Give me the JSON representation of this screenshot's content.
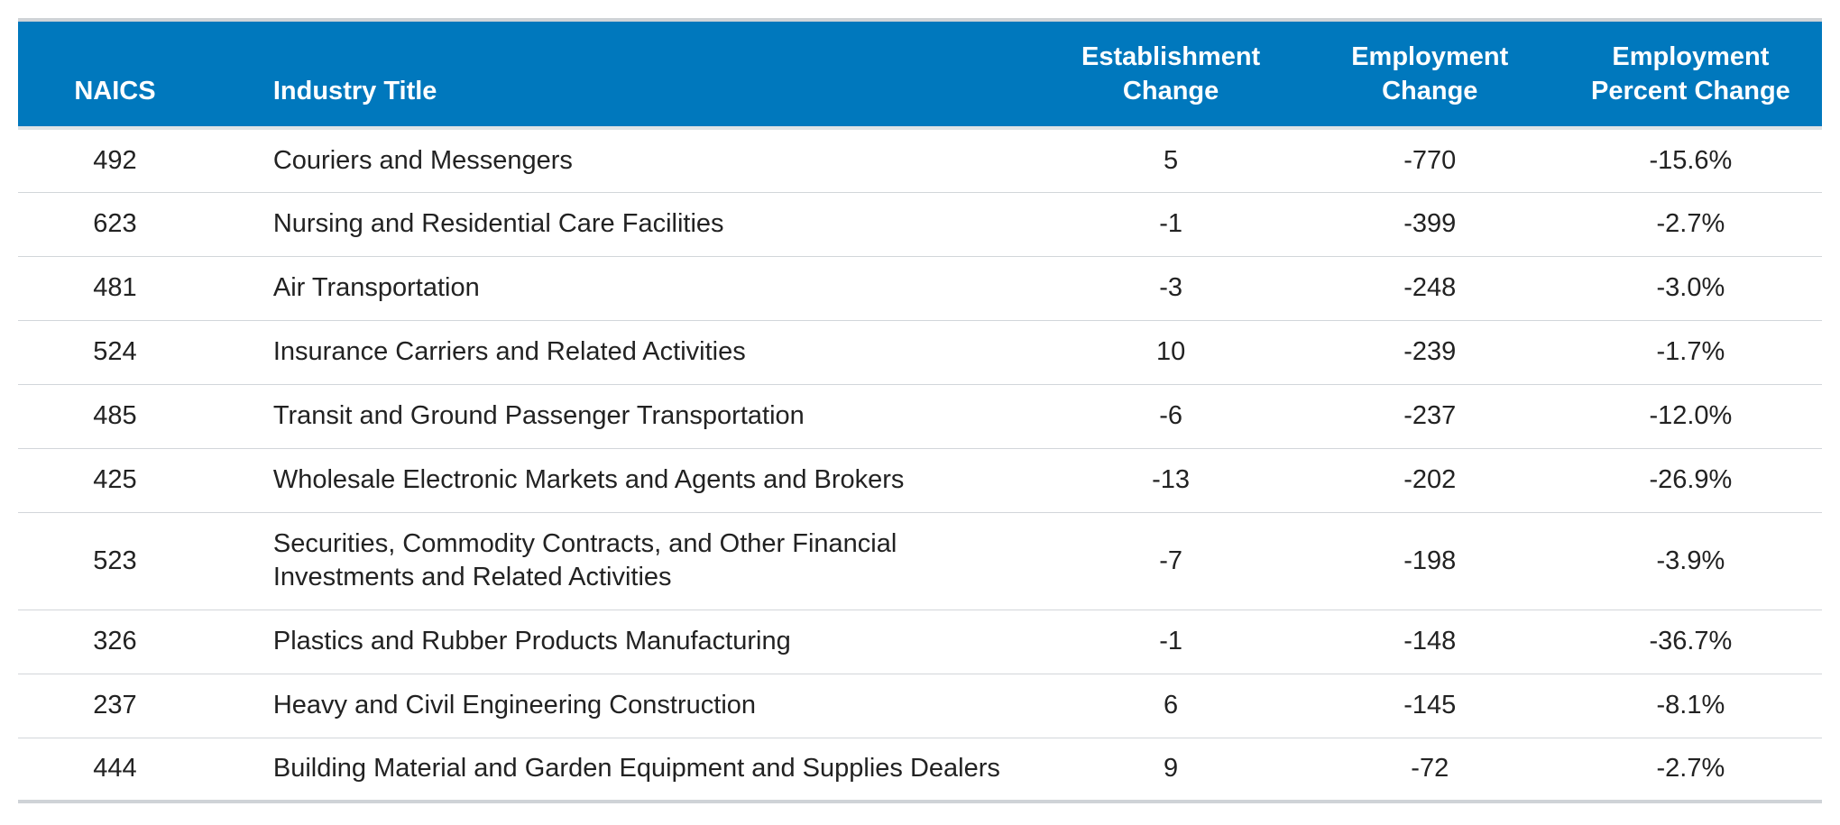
{
  "table": {
    "headers": {
      "naics": "NAICS",
      "title": "Industry Title",
      "establishment_change": [
        "Establishment",
        "Change"
      ],
      "employment_change": [
        "Employment",
        "Change"
      ],
      "employment_percent_change": [
        "Employment",
        "Percent Change"
      ]
    },
    "rows": [
      {
        "naics": "492",
        "title": "Couriers and Messengers",
        "establishment_change": "5",
        "employment_change": "-770",
        "employment_percent_change": "-15.6%"
      },
      {
        "naics": "623",
        "title": "Nursing and Residential Care Facilities",
        "establishment_change": "-1",
        "employment_change": "-399",
        "employment_percent_change": "-2.7%"
      },
      {
        "naics": "481",
        "title": "Air Transportation",
        "establishment_change": "-3",
        "employment_change": "-248",
        "employment_percent_change": "-3.0%"
      },
      {
        "naics": "524",
        "title": "Insurance Carriers and Related Activities",
        "establishment_change": "10",
        "employment_change": "-239",
        "employment_percent_change": "-1.7%"
      },
      {
        "naics": "485",
        "title": "Transit and Ground Passenger Transportation",
        "establishment_change": "-6",
        "employment_change": "-237",
        "employment_percent_change": "-12.0%"
      },
      {
        "naics": "425",
        "title": "Wholesale Electronic Markets and Agents and Brokers",
        "establishment_change": "-13",
        "employment_change": "-202",
        "employment_percent_change": "-26.9%"
      },
      {
        "naics": "523",
        "title": "Securities, Commodity Contracts, and Other Financial Investments and Related Activities",
        "establishment_change": "-7",
        "employment_change": "-198",
        "employment_percent_change": "-3.9%"
      },
      {
        "naics": "326",
        "title": "Plastics and Rubber Products Manufacturing",
        "establishment_change": "-1",
        "employment_change": "-148",
        "employment_percent_change": "-36.7%"
      },
      {
        "naics": "237",
        "title": "Heavy and Civil Engineering Construction",
        "establishment_change": "6",
        "employment_change": "-145",
        "employment_percent_change": "-8.1%"
      },
      {
        "naics": "444",
        "title": "Building Material and Garden Equipment and Supplies Dealers",
        "establishment_change": "9",
        "employment_change": "-72",
        "employment_percent_change": "-2.7%"
      }
    ]
  },
  "colors": {
    "header_background": "#0078bd",
    "header_text": "#ffffff",
    "body_text": "#222222",
    "row_divider": "#d2d6da"
  }
}
